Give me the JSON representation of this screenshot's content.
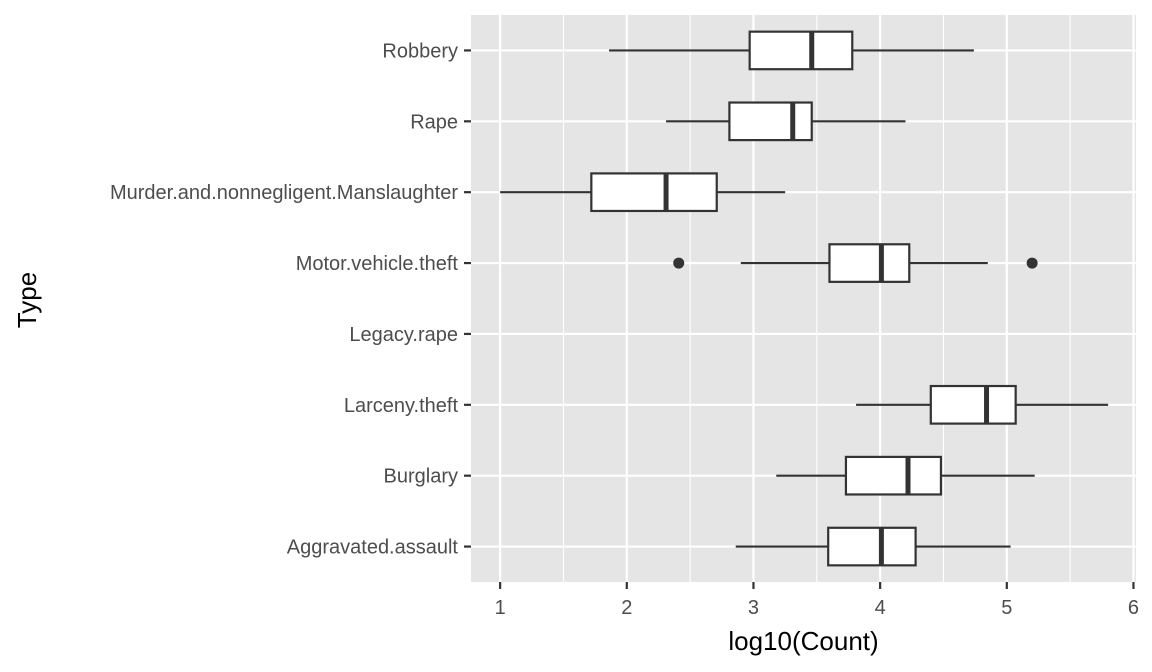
{
  "chart_data": {
    "type": "boxplot",
    "orientation": "horizontal",
    "xlabel": "log10(Count)",
    "ylabel": "Type",
    "xlim": [
      0.77,
      6.02
    ],
    "xticks": [
      1,
      2,
      3,
      4,
      5,
      6
    ],
    "xtick_labels": [
      "1",
      "2",
      "3",
      "4",
      "5",
      "6"
    ],
    "grid": true,
    "colors": {
      "panel": "#e5e5e5",
      "grid": "#ffffff",
      "box_fill": "#ffffff",
      "box_stroke": "#333333",
      "tick": "#333333"
    },
    "categories": [
      "Aggravated.assault",
      "Burglary",
      "Larceny.theft",
      "Legacy.rape",
      "Motor.vehicle.theft",
      "Murder.and.nonnegligent.Manslaughter",
      "Rape",
      "Robbery"
    ],
    "boxes": [
      {
        "category": "Aggravated.assault",
        "whisker_low": 2.86,
        "q1": 3.59,
        "median": 4.01,
        "q3": 4.28,
        "whisker_high": 5.03,
        "outliers": []
      },
      {
        "category": "Burglary",
        "whisker_low": 3.18,
        "q1": 3.73,
        "median": 4.22,
        "q3": 4.48,
        "whisker_high": 5.22,
        "outliers": []
      },
      {
        "category": "Larceny.theft",
        "whisker_low": 3.81,
        "q1": 4.4,
        "median": 4.84,
        "q3": 5.07,
        "whisker_high": 5.8,
        "outliers": []
      },
      {
        "category": "Legacy.rape",
        "empty": true,
        "outliers": []
      },
      {
        "category": "Motor.vehicle.theft",
        "whisker_low": 2.9,
        "q1": 3.6,
        "median": 4.01,
        "q3": 4.23,
        "whisker_high": 4.85,
        "outliers": [
          2.41,
          5.2
        ]
      },
      {
        "category": "Murder.and.nonnegligent.Manslaughter",
        "whisker_low": 1.0,
        "q1": 1.72,
        "median": 2.31,
        "q3": 2.71,
        "whisker_high": 3.25,
        "outliers": []
      },
      {
        "category": "Rape",
        "whisker_low": 2.31,
        "q1": 2.81,
        "median": 3.31,
        "q3": 3.46,
        "whisker_high": 4.2,
        "outliers": []
      },
      {
        "category": "Robbery",
        "whisker_low": 1.86,
        "q1": 2.97,
        "median": 3.46,
        "q3": 3.78,
        "whisker_high": 4.74,
        "outliers": []
      }
    ]
  }
}
